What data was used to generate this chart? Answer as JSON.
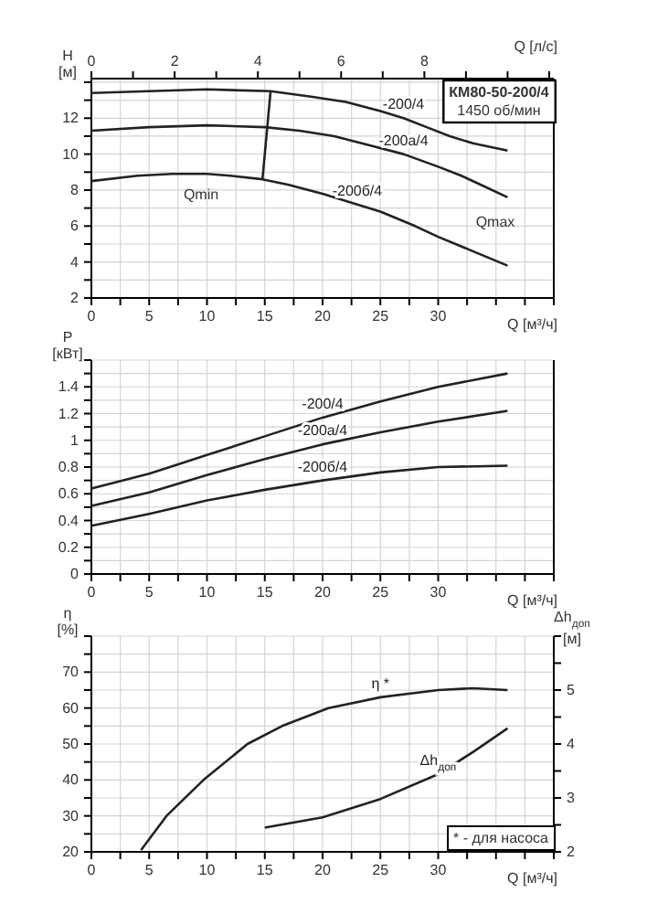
{
  "chart_data": [
    {
      "type": "line",
      "title": "КМ80-50-200/4",
      "subtitle": "1450 об/мин",
      "xlabel": "Q [м³/ч]",
      "ylabel": "H [м]",
      "x2label": "Q [л/с]",
      "xlim": [
        0,
        40
      ],
      "xticks": [
        0,
        {
          "value": 2.5,
          "label": null
        },
        5,
        {
          "value": 7.5,
          "label": null
        },
        10,
        {
          "value": 12.5,
          "label": null
        },
        15,
        {
          "value": 17.5,
          "label": null
        },
        20,
        {
          "value": 22.5,
          "label": null
        },
        25,
        {
          "value": 27.5,
          "label": null
        },
        30,
        {
          "value": 32.5,
          "label": null
        },
        {
          "value": 35,
          "label": null
        },
        {
          "value": 37.5,
          "label": null
        },
        {
          "value": 40,
          "label": null
        }
      ],
      "x2lim": [
        0,
        11.11
      ],
      "x2ticks": [
        0,
        {
          "value": 1,
          "label": null
        },
        2,
        {
          "value": 3,
          "label": null
        },
        4,
        {
          "value": 5,
          "label": null
        },
        6,
        {
          "value": 7,
          "label": null
        },
        8,
        {
          "value": 9,
          "label": null
        },
        {
          "value": 10,
          "label": null
        },
        {
          "value": 11,
          "label": null
        }
      ],
      "ylim": [
        2,
        14.2
      ],
      "yticks": [
        2,
        {
          "value": 3,
          "label": null
        },
        4,
        {
          "value": 5,
          "label": null
        },
        6,
        {
          "value": 7,
          "label": null
        },
        8,
        {
          "value": 9,
          "label": null
        },
        10,
        {
          "value": 11,
          "label": null
        },
        12,
        {
          "value": 13,
          "label": null
        },
        {
          "value": 14,
          "label": null
        }
      ],
      "grid": true,
      "line_style": "solid",
      "marker": "none",
      "series": [
        {
          "name": "-200/4",
          "color": "#222222",
          "x": [
            0,
            5,
            10,
            15.5,
            19,
            22,
            25,
            27,
            29,
            31,
            33,
            36
          ],
          "values": [
            13.4,
            13.5,
            13.6,
            13.5,
            13.2,
            12.9,
            12.4,
            12,
            11.5,
            11,
            10.6,
            10.2
          ]
        },
        {
          "name": "-200а/4",
          "color": "#222222",
          "x": [
            0,
            5,
            10,
            15,
            18,
            21,
            24,
            27,
            30,
            32,
            34,
            36
          ],
          "values": [
            11.3,
            11.5,
            11.6,
            11.5,
            11.3,
            11,
            10.5,
            10,
            9.3,
            8.8,
            8.2,
            7.6
          ]
        },
        {
          "name": "-200б/4",
          "color": "#222222",
          "x": [
            0,
            4,
            7,
            10,
            12,
            14.8,
            17,
            20,
            23,
            25,
            28,
            30,
            33,
            36
          ],
          "values": [
            8.5,
            8.8,
            8.9,
            8.9,
            8.8,
            8.6,
            8.3,
            7.8,
            7.2,
            6.8,
            6,
            5.4,
            4.6,
            3.8
          ]
        },
        {
          "color": "#222222",
          "x": [
            15.5,
            14.8
          ],
          "values": [
            13.5,
            8.6
          ]
        }
      ],
      "annotations": [
        "Qmin",
        "Qmax"
      ]
    },
    {
      "type": "line",
      "xlabel": "Q [м³/ч]",
      "ylabel": "P [кВт]",
      "xlim": [
        0,
        40
      ],
      "xticks": [
        0,
        {
          "value": 2.5,
          "label": null
        },
        5,
        {
          "value": 7.5,
          "label": null
        },
        10,
        {
          "value": 12.5,
          "label": null
        },
        15,
        {
          "value": 17.5,
          "label": null
        },
        20,
        {
          "value": 22.5,
          "label": null
        },
        25,
        {
          "value": 27.5,
          "label": null
        },
        30,
        {
          "value": 32.5,
          "label": null
        },
        {
          "value": 35,
          "label": null
        },
        {
          "value": 37.5,
          "label": null
        },
        {
          "value": 40,
          "label": null
        }
      ],
      "ylim": [
        0,
        1.6
      ],
      "yticks": [
        0,
        {
          "value": 0.1,
          "label": null
        },
        0.2,
        {
          "value": 0.3,
          "label": null
        },
        0.4,
        {
          "value": 0.5,
          "label": null
        },
        0.6,
        {
          "value": 0.7,
          "label": null
        },
        0.8,
        {
          "value": 0.9,
          "label": null
        },
        1,
        {
          "value": 1.1,
          "label": null
        },
        1.2,
        {
          "value": 1.3,
          "label": null
        },
        1.4,
        {
          "value": 1.5,
          "label": null
        },
        {
          "value": 1.6,
          "label": null
        }
      ],
      "grid": true,
      "line_style": "solid",
      "marker": "none",
      "series": [
        {
          "name": "-200/4",
          "color": "#222222",
          "x": [
            0,
            5,
            10,
            15,
            20,
            25,
            30,
            36
          ],
          "values": [
            0.64,
            0.75,
            0.89,
            1.03,
            1.17,
            1.29,
            1.4,
            1.5
          ]
        },
        {
          "name": "-200а/4",
          "color": "#222222",
          "x": [
            0,
            5,
            10,
            15,
            20,
            25,
            30,
            36
          ],
          "values": [
            0.51,
            0.61,
            0.74,
            0.86,
            0.97,
            1.06,
            1.14,
            1.22
          ]
        },
        {
          "name": "-200б/4",
          "color": "#222222",
          "x": [
            0,
            5,
            10,
            15,
            20,
            25,
            30,
            36
          ],
          "values": [
            0.36,
            0.45,
            0.55,
            0.63,
            0.7,
            0.76,
            0.8,
            0.81
          ]
        }
      ]
    },
    {
      "type": "line",
      "xlabel": "Q [м³/ч]",
      "ylabel": "η [%]",
      "y2label": "Δh$_{доп}$ [м]",
      "xlim": [
        0,
        40
      ],
      "xticks": [
        0,
        {
          "value": 2.5,
          "label": null
        },
        5,
        {
          "value": 7.5,
          "label": null
        },
        10,
        {
          "value": 12.5,
          "label": null
        },
        15,
        {
          "value": 17.5,
          "label": null
        },
        20,
        {
          "value": 22.5,
          "label": null
        },
        25,
        {
          "value": 27.5,
          "label": null
        },
        30,
        {
          "value": 32.5,
          "label": null
        },
        {
          "value": 35,
          "label": null
        },
        {
          "value": 37.5,
          "label": null
        },
        {
          "value": 40,
          "label": null
        }
      ],
      "ylim": [
        20,
        80
      ],
      "yticks": [
        20,
        {
          "value": 25,
          "label": null
        },
        30,
        {
          "value": 35,
          "label": null
        },
        40,
        {
          "value": 45,
          "label": null
        },
        50,
        {
          "value": 55,
          "label": null
        },
        60,
        {
          "value": 65,
          "label": null
        },
        70,
        {
          "value": 75,
          "label": null
        },
        {
          "value": 80,
          "label": null
        }
      ],
      "y2lim": [
        2,
        6
      ],
      "y2ticks": [
        2,
        {
          "value": 2.5,
          "label": null
        },
        3,
        {
          "value": 3.5,
          "label": null
        },
        4,
        {
          "value": 4.5,
          "label": null
        },
        5,
        {
          "value": 5.5,
          "label": null
        },
        {
          "value": 6,
          "label": null
        }
      ],
      "grid": true,
      "line_style": "solid",
      "marker": "none",
      "series": [
        {
          "name": "η *",
          "color": "#222222",
          "x": [
            4.3,
            6.5,
            9.7,
            13.5,
            16.5,
            20.5,
            25,
            30,
            33,
            36
          ],
          "values": [
            20.5,
            30,
            40,
            50,
            55,
            60,
            63,
            65,
            65.5,
            65
          ]
        },
        {
          "name": "Δh$_{доп}$",
          "color": "#222222",
          "axis": "y2",
          "x": [
            15,
            20,
            25,
            30,
            33,
            36
          ],
          "values": [
            2.45,
            2.64,
            2.98,
            3.44,
            3.85,
            4.29
          ]
        }
      ],
      "annotations": [
        "* - для насоса"
      ]
    }
  ]
}
